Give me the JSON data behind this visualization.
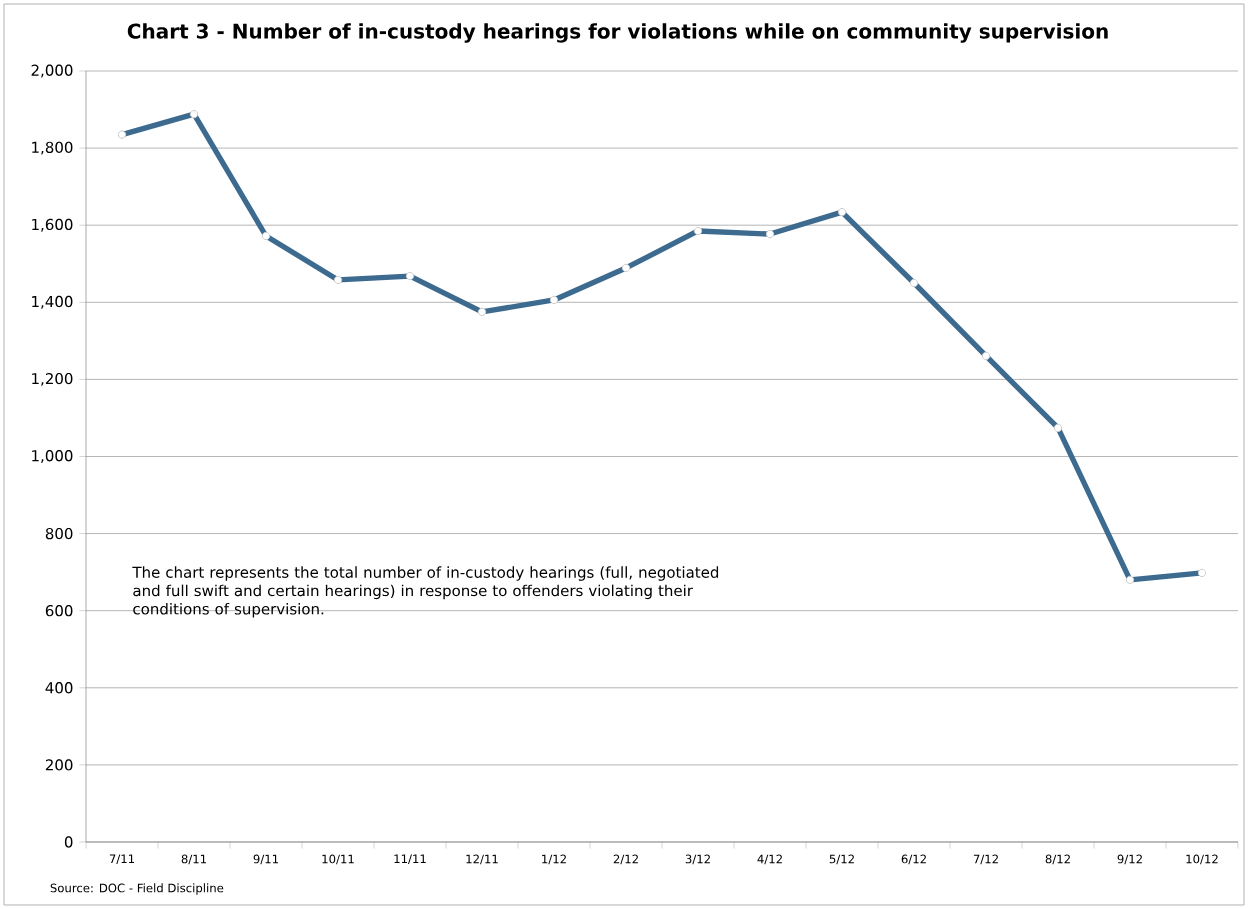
{
  "chart_data": {
    "type": "line",
    "title": "Chart 3 - Number of in-custody hearings for violations while on community supervision",
    "categories": [
      "7/11",
      "8/11",
      "9/11",
      "10/11",
      "11/11",
      "12/11",
      "1/12",
      "2/12",
      "3/12",
      "4/12",
      "5/12",
      "6/12",
      "7/12",
      "8/12",
      "9/12",
      "10/12"
    ],
    "series": [
      {
        "color": "#3d6a8f",
        "values": [
          1835,
          1888,
          1572,
          1458,
          1468,
          1375,
          1406,
          1489,
          1585,
          1577,
          1634,
          1450,
          1261,
          1074,
          680,
          698
        ]
      }
    ],
    "ylim": [
      0,
      2000
    ],
    "yticks": [
      {
        "value": 0,
        "label": "0"
      },
      {
        "value": 200,
        "label": "200"
      },
      {
        "value": 400,
        "label": "400"
      },
      {
        "value": 600,
        "label": "600"
      },
      {
        "value": 800,
        "label": "800"
      },
      {
        "value": 1000,
        "label": "1,000"
      },
      {
        "value": 1200,
        "label": "1,200"
      },
      {
        "value": 1400,
        "label": "1,400"
      },
      {
        "value": 1600,
        "label": "1,600"
      },
      {
        "value": 1800,
        "label": "1,800"
      },
      {
        "value": 2000,
        "label": "2,000"
      }
    ],
    "grid": "y",
    "marker": "circle",
    "line_style": "solid",
    "annotations": [
      "The chart represents the total number of in-custody hearings (full, negotiated and full swift and certain hearings) in response to offenders violating their conditions of supervision.",
      "Source: DOC - Field Discipline"
    ]
  }
}
